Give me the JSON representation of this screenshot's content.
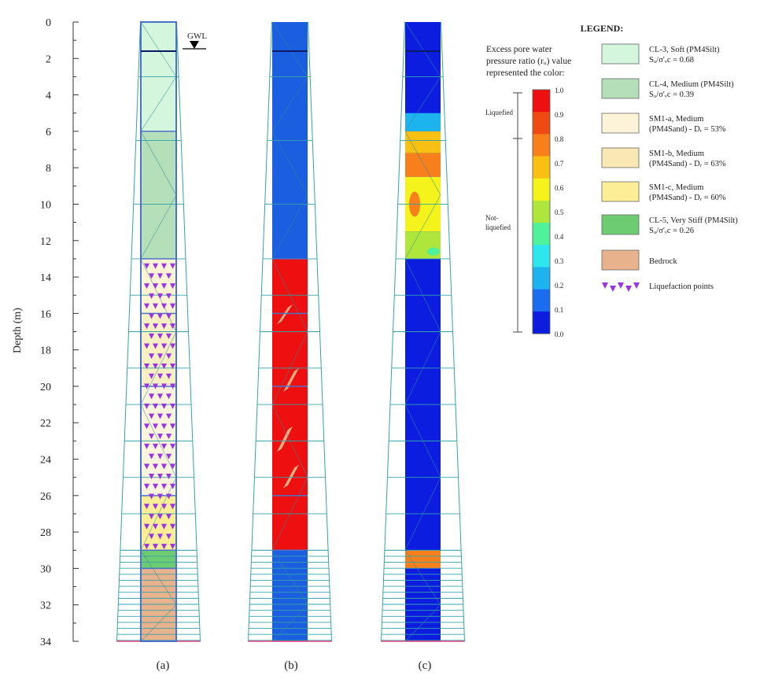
{
  "axis": {
    "label": "Depth (m)",
    "ticks": [
      "0",
      "2",
      "4",
      "6",
      "8",
      "10",
      "12",
      "14",
      "16",
      "18",
      "20",
      "22",
      "24",
      "26",
      "28",
      "30",
      "32",
      "34"
    ],
    "min": 0,
    "max": 34
  },
  "gwl": {
    "label": "GWL",
    "depth": 1.6
  },
  "panels": [
    {
      "id": "a",
      "caption": "(a)"
    },
    {
      "id": "b",
      "caption": "(b)"
    },
    {
      "id": "c",
      "caption": "(c)"
    }
  ],
  "layers": [
    {
      "name": "CL-3",
      "from": 0,
      "to": 6,
      "color": "#d3f6dc"
    },
    {
      "name": "CL-4",
      "from": 6,
      "to": 13,
      "color": "#b5dfb9"
    },
    {
      "name": "SM1-a",
      "from": 13,
      "to": 16,
      "color": "#fcf3d2"
    },
    {
      "name": "SM1-b",
      "from": 16,
      "to": 20,
      "color": "#f8efc2"
    },
    {
      "name": "SM1-a",
      "from": 20,
      "to": 26,
      "color": "#fbf4dc"
    },
    {
      "name": "SM1-c",
      "from": 26,
      "to": 29,
      "color": "#fbee97"
    },
    {
      "name": "CL-5",
      "from": 29,
      "to": 30,
      "color": "#6dcc72"
    },
    {
      "name": "Bedrock",
      "from": 30,
      "to": 34,
      "color": "#e8b28c"
    }
  ],
  "liquefaction_zone": {
    "from": 13,
    "to": 29
  },
  "colors": {
    "mesh": "#33a3a8",
    "column_b_base": "#1c5ee0",
    "column_b_liquefied": "#ee1010",
    "column_c_base": "#0c1de0",
    "marker": "#9a33e0"
  },
  "panel_b_liquefied": {
    "from": 13,
    "to": 29
  },
  "panel_c_zones": [
    {
      "from": 0,
      "to": 5,
      "ru": 0.05
    },
    {
      "from": 5,
      "to": 6,
      "ru": 0.2
    },
    {
      "from": 6,
      "to": 7.2,
      "ru": 0.7
    },
    {
      "from": 7.2,
      "to": 8.5,
      "ru": 0.8
    },
    {
      "from": 8.5,
      "to": 11.5,
      "ru": 0.65
    },
    {
      "from": 11.5,
      "to": 13,
      "ru": 0.5
    },
    {
      "from": 13,
      "to": 29,
      "ru": 0.05
    },
    {
      "from": 29,
      "to": 30,
      "ru": 0.85
    },
    {
      "from": 30,
      "to": 34,
      "ru": 0.05
    }
  ],
  "legend": {
    "title": "LEGEND:",
    "colorbar_title": [
      "Excess pore water",
      "pressure ratio (rᵤ) value",
      "represented the color:"
    ],
    "colorbar_ticks": [
      "1.0",
      "0.9",
      "0.8",
      "0.7",
      "0.6",
      "0.5",
      "0.4",
      "0.3",
      "0.2",
      "0.1",
      "0.0"
    ],
    "colorbar_colors": [
      "#ee1010",
      "#f04a14",
      "#f7801c",
      "#f7c012",
      "#f4f41c",
      "#aee63c",
      "#4ff29a",
      "#2ee7ee",
      "#1cb3ef",
      "#1c6cf0",
      "#0c1de0"
    ],
    "liquefied_label": "Liquefied",
    "not_liquefied_label": [
      "Not-",
      "liquefied"
    ],
    "items": [
      {
        "lines": [
          "CL-3, Soft (PM4Silt)",
          "Sᵤ/σ'ᵥc = 0.68"
        ],
        "color": "#d3f6dc"
      },
      {
        "lines": [
          "CL-4, Medium (PM4Silt)",
          "Sᵤ/σ'ᵥc = 0.39"
        ],
        "color": "#b5dfb9"
      },
      {
        "lines": [
          "SM1-a, Medium",
          "(PM4Sand) - Dᵣ = 53%"
        ],
        "color": "#fcf3d8"
      },
      {
        "lines": [
          "SM1-b, Medium",
          "(PM4Sand) - Dᵣ = 63%"
        ],
        "color": "#f9e8b4"
      },
      {
        "lines": [
          "SM1-c, Medium",
          "(PM4Sand) - Dᵣ = 60%"
        ],
        "color": "#fbee97"
      },
      {
        "lines": [
          "CL-5, Very Stiff (PM4Silt)",
          "Sᵤ/σ'ᵥc = 0.26"
        ],
        "color": "#6dcc72"
      },
      {
        "lines": [
          "Bedrock"
        ],
        "color": "#e8b28c"
      }
    ],
    "marker_label": "Liquefaction points"
  }
}
